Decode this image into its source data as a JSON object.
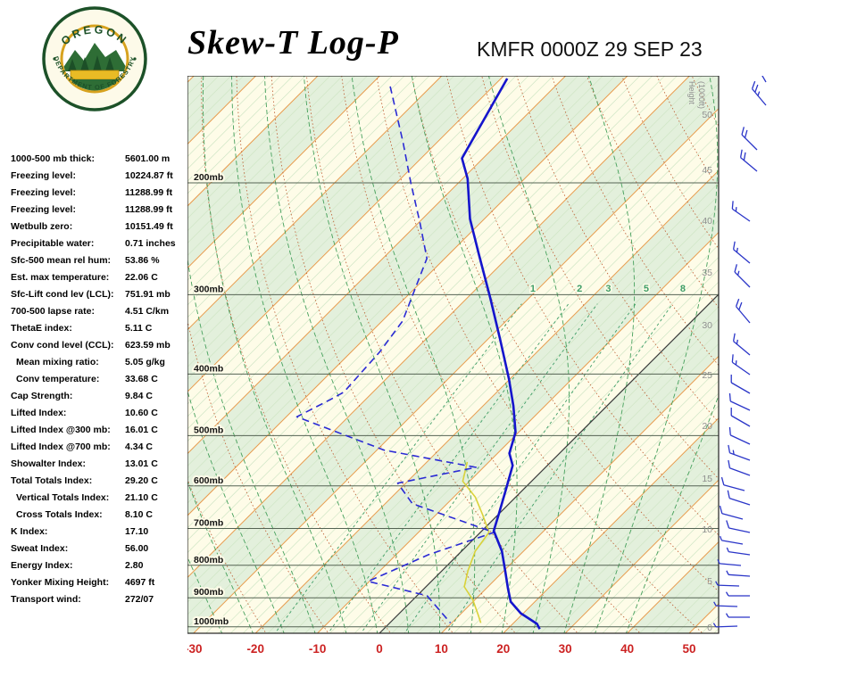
{
  "header": {
    "title": "Skew-T Log-P",
    "station": "KMFR 0000Z 29 SEP 23"
  },
  "logo": {
    "top_text": "OREGON",
    "bottom_text": "DEPARTMENT OF FORESTRY"
  },
  "indices": [
    {
      "label": "1000-500 mb thick:",
      "value": "5601.00 m",
      "indent": false
    },
    {
      "label": "Freezing level:",
      "value": "10224.87 ft",
      "indent": false
    },
    {
      "label": "Freezing level:",
      "value": "11288.99 ft",
      "indent": false
    },
    {
      "label": "Freezing level:",
      "value": "11288.99 ft",
      "indent": false
    },
    {
      "label": "Wetbulb zero:",
      "value": "10151.49 ft",
      "indent": false
    },
    {
      "label": "Precipitable water:",
      "value": "0.71 inches",
      "indent": false
    },
    {
      "label": "Sfc-500 mean rel hum:",
      "value": "53.86 %",
      "indent": false
    },
    {
      "label": "Est. max temperature:",
      "value": "22.06 C",
      "indent": false
    },
    {
      "label": "Sfc-Lift cond lev (LCL):",
      "value": "751.91 mb",
      "indent": false
    },
    {
      "label": "700-500 lapse rate:",
      "value": "4.51 C/km",
      "indent": false
    },
    {
      "label": "ThetaE index:",
      "value": "5.11 C",
      "indent": false
    },
    {
      "label": "Conv cond level (CCL):",
      "value": "623.59 mb",
      "indent": false
    },
    {
      "label": "Mean mixing ratio:",
      "value": "5.05 g/kg",
      "indent": true
    },
    {
      "label": "Conv temperature:",
      "value": "33.68 C",
      "indent": true
    },
    {
      "label": "Cap Strength:",
      "value": "9.84 C",
      "indent": false
    },
    {
      "label": "Lifted Index:",
      "value": "10.60 C",
      "indent": false
    },
    {
      "label": "Lifted Index @300 mb:",
      "value": "16.01 C",
      "indent": false
    },
    {
      "label": "Lifted Index @700 mb:",
      "value": "4.34 C",
      "indent": false
    },
    {
      "label": "Showalter Index:",
      "value": "13.01 C",
      "indent": false
    },
    {
      "label": "Total Totals Index:",
      "value": "29.20 C",
      "indent": false
    },
    {
      "label": "Vertical Totals Index:",
      "value": "21.10 C",
      "indent": true
    },
    {
      "label": "Cross Totals Index:",
      "value": "8.10 C",
      "indent": true
    },
    {
      "label": "K Index:",
      "value": "17.10",
      "indent": false
    },
    {
      "label": "Sweat Index:",
      "value": "56.00",
      "indent": false
    },
    {
      "label": "Energy Index:",
      "value": "2.80",
      "indent": false
    },
    {
      "label": "Yonker Mixing Height:",
      "value": "4697 ft",
      "indent": false
    },
    {
      "label": "Transport wind:",
      "value": "272/07",
      "indent": false
    }
  ],
  "chart_data": {
    "type": "skewt-log-p",
    "title": "Skew-T Log-P",
    "pressure_unit": "mb",
    "pressure_levels": [
      200,
      300,
      400,
      500,
      600,
      700,
      800,
      900,
      1000
    ],
    "temp_axis": {
      "labels": [
        -30,
        -20,
        -10,
        0,
        10,
        20,
        30,
        40,
        50
      ],
      "unit": "C"
    },
    "height_axis": {
      "title": "Height (1000ft)",
      "ticks": [
        {
          "v": 50,
          "y": 47
        },
        {
          "v": 45,
          "y": 109
        },
        {
          "v": 40,
          "y": 166
        },
        {
          "v": 35,
          "y": 224
        },
        {
          "v": 30,
          "y": 283
        },
        {
          "v": 25,
          "y": 339
        },
        {
          "v": 20,
          "y": 396
        },
        {
          "v": 15,
          "y": 455
        },
        {
          "v": 10,
          "y": 512
        },
        {
          "v": 5,
          "y": 570
        },
        {
          "v": 0,
          "y": 622
        }
      ]
    },
    "mixing_ratio_lines": [
      1,
      2,
      3,
      5,
      8
    ],
    "grid": {
      "isotherm_step": 10,
      "isotherm_minor_step": 2,
      "band_step": 20,
      "dry_adiabat_step": 10,
      "moist_adiabat_step": 5
    },
    "series": {
      "temperature": [
        {
          "p": 137,
          "t": -69.0
        },
        {
          "p": 183,
          "t": -63.4
        },
        {
          "p": 197,
          "t": -59.2
        },
        {
          "p": 228,
          "t": -52.3
        },
        {
          "p": 259,
          "t": -45.2
        },
        {
          "p": 304,
          "t": -36.2
        },
        {
          "p": 352,
          "t": -28.1
        },
        {
          "p": 407,
          "t": -20.2
        },
        {
          "p": 449,
          "t": -15.1
        },
        {
          "p": 494,
          "t": -10.5
        },
        {
          "p": 533,
          "t": -8.1
        },
        {
          "p": 557,
          "t": -5.6
        },
        {
          "p": 606,
          "t": -2.9
        },
        {
          "p": 662,
          "t": -0.1
        },
        {
          "p": 706,
          "t": 1.9
        },
        {
          "p": 760,
          "t": 6.5
        },
        {
          "p": 816,
          "t": 10.2
        },
        {
          "p": 870,
          "t": 13.5
        },
        {
          "p": 913,
          "t": 16.1
        },
        {
          "p": 952,
          "t": 19.6
        },
        {
          "p": 989,
          "t": 23.9
        },
        {
          "p": 1008,
          "t": 25.2
        }
      ],
      "dewpoint": [
        {
          "p": 141,
          "t": -86.6
        },
        {
          "p": 173,
          "t": -75.4
        },
        {
          "p": 200,
          "t": -67.7
        },
        {
          "p": 231,
          "t": -59.8
        },
        {
          "p": 263,
          "t": -52.9
        },
        {
          "p": 330,
          "t": -46.7
        },
        {
          "p": 369,
          "t": -45.4
        },
        {
          "p": 427,
          "t": -44.7
        },
        {
          "p": 439,
          "t": -45.7
        },
        {
          "p": 467,
          "t": -48.3
        },
        {
          "p": 527,
          "t": -28.8
        },
        {
          "p": 561,
          "t": -11.2
        },
        {
          "p": 594,
          "t": -21.3
        },
        {
          "p": 640,
          "t": -15.6
        },
        {
          "p": 710,
          "t": 2.2
        },
        {
          "p": 770,
          "t": -4.8
        },
        {
          "p": 848,
          "t": -10.2
        },
        {
          "p": 893,
          "t": 1.6
        },
        {
          "p": 952,
          "t": 6.9
        },
        {
          "p": 986,
          "t": 9.8
        }
      ],
      "wetbulb": [
        {
          "p": 550,
          "t": -13.5
        },
        {
          "p": 590,
          "t": -11.1
        },
        {
          "p": 625,
          "t": -6.5
        },
        {
          "p": 667,
          "t": -2.4
        },
        {
          "p": 710,
          "t": 1.4
        },
        {
          "p": 760,
          "t": 2.2
        },
        {
          "p": 816,
          "t": 4.2
        },
        {
          "p": 865,
          "t": 6.2
        },
        {
          "p": 907,
          "t": 9.7
        },
        {
          "p": 958,
          "t": 13.0
        },
        {
          "p": 986,
          "t": 14.7
        }
      ]
    },
    "wind_barbs": [
      {
        "y": 7,
        "dx": 20,
        "dir": 330,
        "spd": 25
      },
      {
        "y": 33,
        "dx": 20,
        "dir": 320,
        "spd": 25
      },
      {
        "y": 83,
        "dx": 10,
        "dir": 315,
        "spd": 20
      },
      {
        "y": 107,
        "dx": 10,
        "dir": 310,
        "spd": 20
      },
      {
        "y": 163,
        "dx": 2,
        "dir": 305,
        "spd": 15
      },
      {
        "y": 210,
        "dx": 2,
        "dir": 310,
        "spd": 15
      },
      {
        "y": 237,
        "dx": 2,
        "dir": 315,
        "spd": 15
      },
      {
        "y": 277,
        "dx": 2,
        "dir": 320,
        "spd": 20
      },
      {
        "y": 313,
        "dx": 2,
        "dir": 310,
        "spd": 15
      },
      {
        "y": 335,
        "dx": 2,
        "dir": 305,
        "spd": 15
      },
      {
        "y": 356,
        "dx": 2,
        "dir": 300,
        "spd": 10
      },
      {
        "y": 375,
        "dx": 2,
        "dir": 295,
        "spd": 10
      },
      {
        "y": 393,
        "dx": 2,
        "dir": 300,
        "spd": 10
      },
      {
        "y": 413,
        "dx": 2,
        "dir": 295,
        "spd": 10
      },
      {
        "y": 431,
        "dx": 2,
        "dir": 290,
        "spd": 15
      },
      {
        "y": 448,
        "dx": 2,
        "dir": 290,
        "spd": 10
      },
      {
        "y": 465,
        "dx": -4,
        "dir": 285,
        "spd": 10
      },
      {
        "y": 481,
        "dx": 2,
        "dir": 288,
        "spd": 10
      },
      {
        "y": 497,
        "dx": -6,
        "dir": 285,
        "spd": 10
      },
      {
        "y": 512,
        "dx": 2,
        "dir": 282,
        "spd": 10
      },
      {
        "y": 525,
        "dx": -6,
        "dir": 280,
        "spd": 5
      },
      {
        "y": 537,
        "dx": 2,
        "dir": 278,
        "spd": 5
      },
      {
        "y": 549,
        "dx": -8,
        "dir": 275,
        "spd": 5
      },
      {
        "y": 561,
        "dx": 2,
        "dir": 274,
        "spd": 5
      },
      {
        "y": 572,
        "dx": -10,
        "dir": 272,
        "spd": 5
      },
      {
        "y": 583,
        "dx": 2,
        "dir": 270,
        "spd": 5
      },
      {
        "y": 595,
        "dx": -12,
        "dir": 272,
        "spd": 7
      },
      {
        "y": 607,
        "dx": 2,
        "dir": 270,
        "spd": 7
      },
      {
        "y": 617,
        "dx": -12,
        "dir": 268,
        "spd": 7
      }
    ],
    "colors": {
      "background": "#fefce8",
      "band_green": "#e3f0dc",
      "isotherm_minor": "#cfe5c5",
      "isotherm": "#e89b4d",
      "zero_line": "#3a3a3a",
      "pressure_line": "#546353",
      "dry_adiabat": "#bc5a2e",
      "moist_adiabat": "#46a05c",
      "mixing_ratio": "#3f9e68",
      "temp_curve": "#1515cc",
      "dew_curve": "#2a2ad4",
      "wetbulb_curve": "#d9d23a",
      "wind_barb": "#2a35c8",
      "axis_label": "#cc2222",
      "height_label": "#909090",
      "pressure_label": "#111111"
    }
  }
}
